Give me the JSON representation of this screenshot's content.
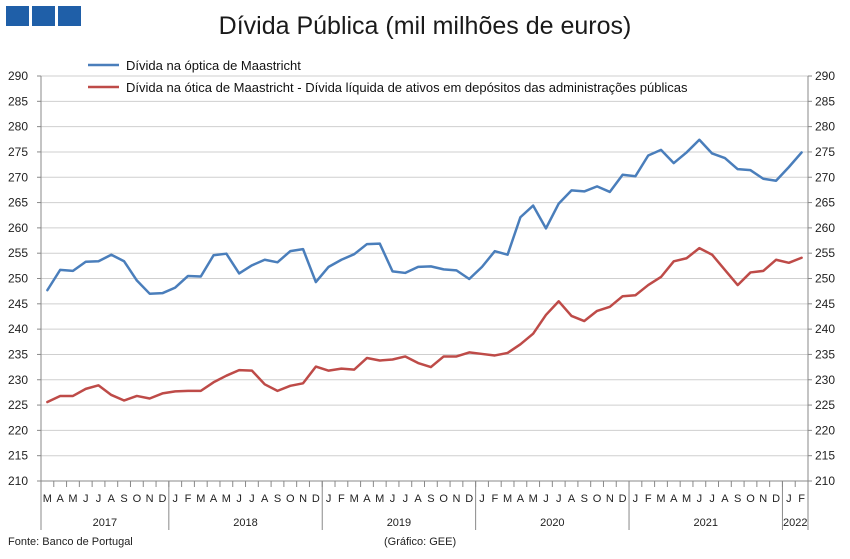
{
  "chart_data": {
    "type": "line",
    "title": "Dívida Pública (mil milhões de euros)",
    "ylim": [
      210,
      290
    ],
    "ystep": 5,
    "grid": "horizontal",
    "legend_position": "top-left",
    "month_labels": [
      "M",
      "A",
      "M",
      "J",
      "J",
      "A",
      "S",
      "O",
      "N",
      "D",
      "J",
      "F",
      "M",
      "A",
      "M",
      "J",
      "J",
      "A",
      "S",
      "O",
      "N",
      "D",
      "J",
      "F",
      "M",
      "A",
      "M",
      "J",
      "J",
      "A",
      "S",
      "O",
      "N",
      "D",
      "J",
      "F",
      "M",
      "A",
      "M",
      "J",
      "J",
      "A",
      "S",
      "O",
      "N",
      "D",
      "J",
      "F",
      "M",
      "A",
      "M",
      "J",
      "J",
      "A",
      "S",
      "O",
      "N",
      "D",
      "J",
      "F"
    ],
    "year_groups": [
      {
        "label": "2017",
        "months": 10
      },
      {
        "label": "2018",
        "months": 12
      },
      {
        "label": "2019",
        "months": 12
      },
      {
        "label": "2020",
        "months": 12
      },
      {
        "label": "2021",
        "months": 12
      },
      {
        "label": "2022",
        "months": 2
      }
    ],
    "series": [
      {
        "name": "Dívida na óptica de Maastricht",
        "color": "#4a7ebb",
        "values": [
          247.7,
          251.7,
          251.5,
          253.3,
          253.4,
          254.7,
          253.4,
          249.6,
          247.0,
          247.1,
          248.2,
          250.5,
          250.4,
          254.6,
          254.9,
          251.0,
          252.6,
          253.7,
          253.2,
          255.4,
          255.8,
          249.3,
          252.3,
          253.7,
          254.8,
          256.8,
          256.9,
          251.4,
          251.1,
          252.3,
          252.4,
          251.8,
          251.6,
          249.9,
          252.3,
          255.4,
          254.7,
          262.1,
          264.4,
          259.9,
          264.8,
          267.4,
          267.2,
          268.2,
          267.1,
          270.5,
          270.2,
          274.3,
          275.4,
          272.8,
          274.9,
          277.4,
          274.7,
          273.8,
          271.6,
          271.4,
          269.7,
          269.3,
          272.0,
          274.9
        ]
      },
      {
        "name": "Dívida na ótica de Maastricht - Dívida líquida de ativos em depósitos das administrações públicas",
        "color": "#be4b48",
        "values": [
          225.6,
          226.8,
          226.8,
          228.2,
          228.9,
          227.0,
          225.9,
          226.8,
          226.3,
          227.3,
          227.7,
          227.8,
          227.8,
          229.5,
          230.8,
          231.9,
          231.8,
          229.1,
          227.8,
          228.8,
          229.3,
          232.6,
          231.8,
          232.2,
          232.0,
          234.3,
          233.8,
          234.0,
          234.6,
          233.3,
          232.5,
          234.6,
          234.6,
          235.4,
          235.1,
          234.8,
          235.3,
          237.0,
          239.1,
          242.8,
          245.5,
          242.6,
          241.6,
          243.6,
          244.4,
          246.5,
          246.7,
          248.7,
          250.3,
          253.4,
          254.0,
          256.0,
          254.7,
          251.7,
          248.7,
          251.2,
          251.5,
          253.7,
          253.1,
          254.1
        ]
      }
    ]
  },
  "footer": {
    "source": "Fonte: Banco de Portugal",
    "credit": "(Gráfico: GEE)"
  }
}
